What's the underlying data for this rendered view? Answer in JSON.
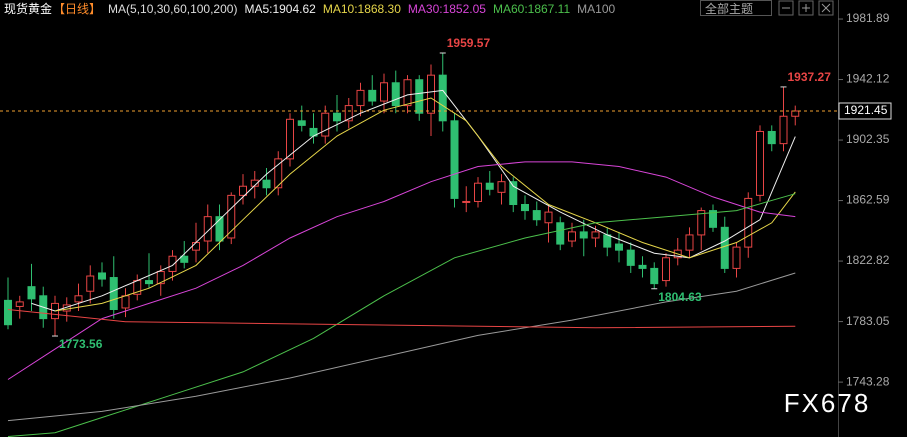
{
  "chart_data": {
    "type": "candlestick",
    "title": "现货黄金",
    "period": "【日线】",
    "indicator": "MA(5,10,30,60,100,200)",
    "theme_button": "全部主题",
    "watermark": "FX678",
    "up_color": "#e84545",
    "down_color": "#2fbf71",
    "ylim": [
      1707.2,
      1994.4
    ],
    "yticks": [
      1743.28,
      1783.05,
      1822.82,
      1862.59,
      1902.35,
      1942.12,
      1981.89
    ],
    "open": [
      1797,
      1793,
      1806,
      1800,
      1785,
      1790,
      1796,
      1803,
      1815,
      1812,
      1792,
      1801,
      1810,
      1808,
      1816,
      1826,
      1830,
      1836,
      1852,
      1838,
      1866,
      1872,
      1876,
      1871,
      1890,
      1915,
      1910,
      1905,
      1920,
      1915,
      1925,
      1935,
      1928,
      1940,
      1925,
      1942,
      1920,
      1945,
      1915,
      1862,
      1862,
      1874,
      1868,
      1875,
      1860,
      1856,
      1848,
      1848,
      1836,
      1842,
      1838,
      1840,
      1834,
      1830,
      1820,
      1818,
      1810,
      1825,
      1830,
      1840,
      1856,
      1845,
      1818,
      1832,
      1866,
      1908,
      1900,
      1918
    ],
    "high": [
      1812,
      1800,
      1821,
      1806,
      1800,
      1799,
      1808,
      1820,
      1822,
      1826,
      1805,
      1814,
      1828,
      1820,
      1830,
      1836,
      1848,
      1860,
      1860,
      1868,
      1880,
      1882,
      1884,
      1895,
      1920,
      1925,
      1920,
      1925,
      1932,
      1930,
      1940,
      1945,
      1946,
      1948,
      1945,
      1945,
      1952,
      1959.57,
      1920,
      1872,
      1878,
      1882,
      1880,
      1878,
      1866,
      1862,
      1860,
      1852,
      1848,
      1850,
      1846,
      1845,
      1842,
      1835,
      1826,
      1822,
      1828,
      1838,
      1845,
      1858,
      1860,
      1852,
      1835,
      1868,
      1912,
      1912,
      1937.27,
      1925
    ],
    "low": [
      1778,
      1785,
      1790,
      1779,
      1773.56,
      1783,
      1790,
      1795,
      1806,
      1785,
      1786,
      1797,
      1805,
      1800,
      1810,
      1818,
      1822,
      1828,
      1830,
      1834,
      1860,
      1864,
      1866,
      1866,
      1885,
      1908,
      1900,
      1900,
      1908,
      1910,
      1918,
      1925,
      1920,
      1920,
      1920,
      1915,
      1905,
      1908,
      1858,
      1855,
      1858,
      1866,
      1860,
      1855,
      1850,
      1846,
      1835,
      1830,
      1832,
      1826,
      1832,
      1826,
      1822,
      1815,
      1812,
      1804.63,
      1806,
      1820,
      1825,
      1830,
      1842,
      1815,
      1812,
      1825,
      1862,
      1895,
      1895,
      1912
    ],
    "close": [
      1781,
      1796,
      1798,
      1785,
      1795,
      1794,
      1800,
      1813,
      1811,
      1791,
      1800,
      1810,
      1808,
      1816,
      1826,
      1822,
      1835,
      1852,
      1836,
      1866,
      1872,
      1876,
      1871,
      1890,
      1916,
      1912,
      1905,
      1920,
      1915,
      1925,
      1935,
      1928,
      1940,
      1925,
      1942,
      1920,
      1945,
      1915,
      1864,
      1862,
      1874,
      1870,
      1875,
      1860,
      1856,
      1850,
      1855,
      1834,
      1842,
      1838,
      1842,
      1832,
      1830,
      1820,
      1818,
      1808,
      1825,
      1830,
      1840,
      1856,
      1845,
      1818,
      1832,
      1864,
      1908,
      1900,
      1918,
      1921.45
    ],
    "annotations": [
      {
        "value": 1959.57
      },
      {
        "value": 1937.27
      },
      {
        "value": 1804.63
      },
      {
        "value": 1773.56
      }
    ],
    "series": [
      {
        "name": "MA5:1904.62",
        "color": "#f0f0f0",
        "x": [
          2,
          4,
          8,
          14,
          18,
          22,
          26,
          30,
          34,
          37,
          40,
          43,
          47,
          51,
          55,
          58,
          61,
          64,
          67
        ],
        "values": [
          1795,
          1790,
          1800,
          1820,
          1850,
          1880,
          1905,
          1920,
          1932,
          1935,
          1905,
          1872,
          1855,
          1840,
          1828,
          1825,
          1836,
          1850,
          1904.62
        ]
      },
      {
        "name": "MA10:1868.30",
        "color": "#e6d64a",
        "x": [
          4,
          8,
          12,
          16,
          20,
          24,
          28,
          32,
          36,
          39,
          42,
          46,
          50,
          54,
          58,
          62,
          65,
          67
        ],
        "values": [
          1790,
          1795,
          1805,
          1820,
          1850,
          1880,
          1905,
          1922,
          1930,
          1915,
          1885,
          1860,
          1848,
          1835,
          1825,
          1835,
          1848,
          1868.3
        ]
      },
      {
        "name": "MA30:1852.05",
        "color": "#d845d8",
        "x": [
          0,
          4,
          8,
          12,
          16,
          20,
          24,
          28,
          32,
          36,
          40,
          44,
          48,
          52,
          56,
          60,
          64,
          67
        ],
        "values": [
          1745,
          1765,
          1785,
          1795,
          1805,
          1820,
          1838,
          1852,
          1862,
          1875,
          1885,
          1888,
          1888,
          1885,
          1878,
          1865,
          1855,
          1852.05
        ]
      },
      {
        "name": "MA60:1867.11",
        "color": "#4cc04c",
        "x": [
          0,
          4,
          8,
          14,
          20,
          26,
          32,
          38,
          44,
          50,
          56,
          62,
          67
        ],
        "values": [
          1707.5,
          1710,
          1720,
          1735,
          1750,
          1772,
          1800,
          1825,
          1838,
          1848,
          1852,
          1856,
          1867.11
        ]
      },
      {
        "name": "MA100",
        "color": "#9a9a9a",
        "x": [
          0,
          8,
          16,
          24,
          32,
          40,
          48,
          56,
          62,
          67
        ],
        "values": [
          1718,
          1724,
          1734,
          1746,
          1760,
          1774,
          1784,
          1796,
          1803,
          1815
        ]
      },
      {
        "color": "#e84545",
        "x": [
          0,
          10,
          30,
          50,
          67
        ],
        "values": [
          1791,
          1783,
          1781,
          1779,
          1780
        ]
      }
    ]
  }
}
